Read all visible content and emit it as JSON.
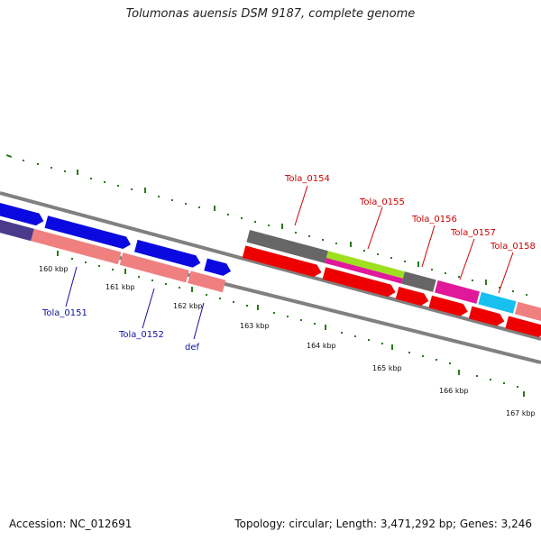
{
  "title": "Tolumonas auensis DSM 9187, complete genome",
  "footer": {
    "accession": "Accession: NC_012691",
    "summary": "Topology: circular; Length: 3,471,292 bp; Genes: 3,246"
  },
  "scale_labels": [
    "160 kbp",
    "161 kbp",
    "162 kbp",
    "163 kbp",
    "164 kbp",
    "165 kbp",
    "166 kbp",
    "167 kbp"
  ],
  "gene_labels_top": [
    "Tola_0154",
    "Tola_0155",
    "Tola_0156",
    "Tola_0157",
    "Tola_0158"
  ],
  "gene_labels_bottom": [
    "Tola_0151",
    "Tola_0152",
    "def"
  ],
  "colors": {
    "tick_green": "#2a7a1a",
    "backbone": "#808080",
    "cds_blue": "#0a0ae0",
    "cds_pink": "#f08080",
    "cds_red": "#ee0000",
    "cds_gray": "#666666",
    "cds_lime": "#9ee020",
    "cds_magenta": "#e0189a",
    "cds_cyan": "#18c0f0",
    "label_red": "#cc0000",
    "label_blue": "#1010a0"
  }
}
